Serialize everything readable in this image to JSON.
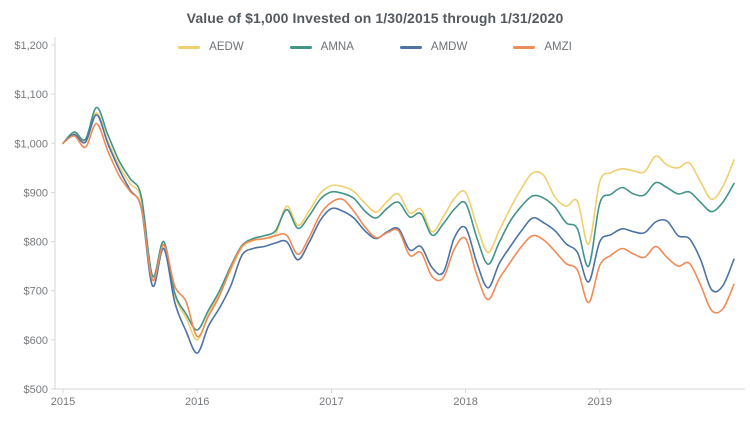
{
  "chart_data": {
    "type": "line",
    "title": "Value of $1,000 Invested on 1/30/2015 through 1/31/2020",
    "xlabel": "",
    "ylabel": "",
    "ylim": [
      500,
      1200
    ],
    "grid": false,
    "legend_position": "top-center",
    "frequency": "monthly",
    "x_start": "2015-01",
    "x_end": "2020-01",
    "y_ticks": [
      {
        "v": 500,
        "label": "$500"
      },
      {
        "v": 600,
        "label": "$600"
      },
      {
        "v": 700,
        "label": "$700"
      },
      {
        "v": 800,
        "label": "$800"
      },
      {
        "v": 900,
        "label": "$900"
      },
      {
        "v": 1000,
        "label": "$1,000"
      },
      {
        "v": 1100,
        "label": "$1,100"
      },
      {
        "v": 1200,
        "label": "$1,200"
      }
    ],
    "x_ticks": [
      {
        "month_index": 0,
        "label": "2015"
      },
      {
        "month_index": 12,
        "label": "2016"
      },
      {
        "month_index": 24,
        "label": "2017"
      },
      {
        "month_index": 36,
        "label": "2018"
      },
      {
        "month_index": 48,
        "label": "2019"
      }
    ],
    "series": [
      {
        "name": "AEDW",
        "color": "#EFCF6E",
        "values": [
          1000,
          1019,
          1004,
          1062,
          1005,
          955,
          918,
          885,
          722,
          795,
          690,
          645,
          600,
          652,
          694,
          742,
          788,
          802,
          806,
          815,
          872,
          833,
          862,
          898,
          914,
          912,
          902,
          878,
          860,
          882,
          897,
          858,
          866,
          820,
          850,
          888,
          900,
          832,
          778,
          822,
          868,
          908,
          940,
          934,
          890,
          872,
          882,
          795,
          922,
          940,
          948,
          944,
          942,
          974,
          956,
          950,
          960,
          922,
          886,
          912,
          966
        ]
      },
      {
        "name": "AMNA",
        "color": "#41948A",
        "values": [
          1000,
          1023,
          1008,
          1073,
          1018,
          965,
          928,
          892,
          730,
          800,
          695,
          653,
          620,
          660,
          700,
          750,
          792,
          806,
          812,
          822,
          865,
          827,
          852,
          886,
          901,
          898,
          888,
          862,
          848,
          868,
          880,
          850,
          857,
          813,
          836,
          866,
          878,
          808,
          754,
          798,
          842,
          872,
          893,
          888,
          870,
          838,
          826,
          750,
          878,
          896,
          910,
          897,
          895,
          920,
          910,
          897,
          901,
          880,
          861,
          880,
          918
        ]
      },
      {
        "name": "AMDW",
        "color": "#4D73A4",
        "values": [
          1000,
          1018,
          1002,
          1058,
          1000,
          948,
          905,
          868,
          710,
          786,
          676,
          618,
          573,
          628,
          665,
          710,
          772,
          786,
          790,
          797,
          800,
          763,
          798,
          843,
          867,
          862,
          848,
          822,
          806,
          820,
          826,
          783,
          790,
          747,
          737,
          808,
          828,
          757,
          706,
          755,
          790,
          822,
          848,
          838,
          822,
          795,
          778,
          718,
          800,
          814,
          826,
          820,
          818,
          840,
          842,
          812,
          806,
          764,
          702,
          710,
          764
        ]
      },
      {
        "name": "AMZI",
        "color": "#F08B57",
        "values": [
          1000,
          1015,
          992,
          1040,
          985,
          935,
          902,
          870,
          722,
          793,
          709,
          678,
          607,
          648,
          690,
          746,
          790,
          803,
          806,
          812,
          813,
          774,
          808,
          855,
          880,
          886,
          862,
          830,
          808,
          818,
          822,
          772,
          778,
          729,
          726,
          785,
          806,
          732,
          682,
          724,
          758,
          790,
          812,
          803,
          780,
          755,
          742,
          676,
          752,
          772,
          786,
          775,
          768,
          790,
          768,
          750,
          756,
          712,
          660,
          663,
          713
        ]
      }
    ],
    "style": {
      "axis_color": "#d6d6d6",
      "tick_label_color": "#76797c",
      "title_color": "#54595d",
      "line_width": 1.6
    }
  }
}
